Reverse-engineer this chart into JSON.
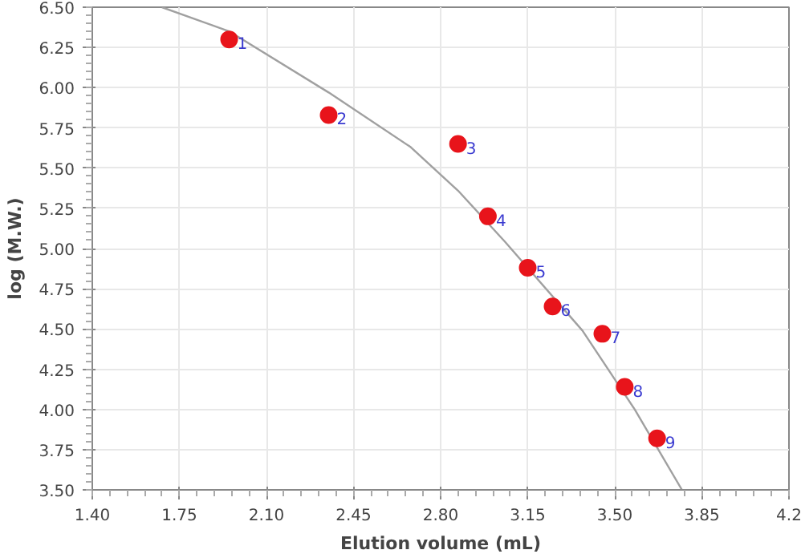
{
  "chart_data": {
    "type": "scatter",
    "xlabel": "Elution volume (mL)",
    "ylabel": "log (M.W.)",
    "xlim": [
      1.4,
      4.2
    ],
    "ylim": [
      3.5,
      6.5
    ],
    "xticks": [
      {
        "value": 1.4,
        "label": "1.40"
      },
      1.75,
      {
        "value": 2.1,
        "label": "2.10"
      },
      2.45,
      {
        "value": 2.8,
        "label": "2.80"
      },
      3.15,
      {
        "value": 3.5,
        "label": "3.50"
      },
      3.85,
      {
        "value": 4.2,
        "label": "4.2"
      }
    ],
    "yticks": [
      {
        "value": 3.5,
        "label": "3.50"
      },
      3.75,
      {
        "value": 4.0,
        "label": "4.00"
      },
      4.25,
      {
        "value": 4.5,
        "label": "4.50"
      },
      4.75,
      {
        "value": 5.0,
        "label": "5.00"
      },
      5.25,
      {
        "value": 5.5,
        "label": "5.50"
      },
      5.75,
      {
        "value": 6.0,
        "label": "6.00"
      },
      6.25,
      {
        "value": 6.5,
        "label": "6.50"
      }
    ],
    "grid": true,
    "series": [
      {
        "type": "line",
        "color": "#a0a0a0",
        "x": [
          1.68,
          1.95,
          2.35,
          2.68,
          2.87,
          3.06,
          3.37,
          3.58,
          3.77
        ],
        "values": [
          6.5,
          6.35,
          5.97,
          5.63,
          5.36,
          5.04,
          4.49,
          4.0,
          3.5
        ]
      },
      {
        "marker": "circle",
        "color": "#e8141b",
        "x": [
          1.95,
          2.35,
          2.87,
          2.99,
          3.15,
          3.25,
          3.45,
          3.54,
          3.67
        ],
        "values": [
          6.3,
          5.83,
          5.65,
          5.2,
          4.88,
          4.64,
          4.47,
          4.14,
          3.82
        ]
      }
    ],
    "annotations": [
      {
        "text": "1",
        "x": 1.95,
        "y": 6.3
      },
      {
        "text": "2",
        "x": 2.35,
        "y": 5.83
      },
      {
        "text": "3",
        "x": 2.87,
        "y": 5.65
      },
      {
        "text": "4",
        "x": 2.99,
        "y": 5.2
      },
      {
        "text": "5",
        "x": 3.15,
        "y": 4.88
      },
      {
        "text": "6",
        "x": 3.25,
        "y": 4.64
      },
      {
        "text": "7",
        "x": 3.45,
        "y": 4.47
      },
      {
        "text": "8",
        "x": 3.54,
        "y": 4.14
      },
      {
        "text": "9",
        "x": 3.67,
        "y": 3.82
      }
    ]
  }
}
